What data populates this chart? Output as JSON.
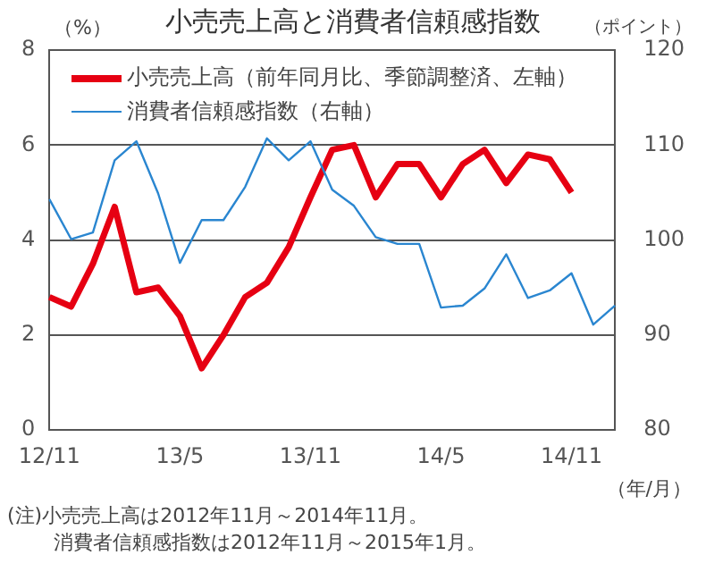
{
  "chart_data": {
    "type": "line",
    "title": "小売売上高と消費者信頼感指数",
    "ylabel": "（%）",
    "y2label": "（ポイント）",
    "xlabel": "（年/月）",
    "categories": [
      "12/11",
      null,
      null,
      null,
      null,
      null,
      "13/5",
      null,
      null,
      null,
      null,
      null,
      "13/11",
      null,
      null,
      null,
      null,
      null,
      "14/5",
      null,
      null,
      null,
      null,
      null,
      "14/11",
      null,
      null
    ],
    "series": [
      {
        "name": "小売売上高（前年同月比、季節調整済、左軸）",
        "color": "#e60012",
        "values": [
          2.8,
          2.6,
          3.5,
          4.7,
          2.9,
          3.0,
          2.4,
          1.3,
          2.0,
          2.8,
          3.1,
          3.85,
          4.9,
          5.9,
          6.0,
          4.9,
          5.6,
          5.6,
          4.9,
          5.6,
          5.9,
          5.2,
          5.8,
          5.7,
          5.0,
          null,
          null
        ]
      },
      {
        "name": "消費者信頼感指数（右軸）",
        "color": "#2a86d0",
        "axis": "y2",
        "values": [
          104.3,
          100.1,
          100.8,
          108.4,
          110.4,
          104.9,
          97.6,
          102.1,
          102.1,
          105.6,
          110.7,
          108.4,
          110.4,
          105.3,
          103.6,
          100.3,
          99.6,
          99.6,
          92.9,
          93.1,
          94.9,
          98.5,
          93.9,
          94.7,
          96.5,
          91.1,
          93.1
        ]
      }
    ],
    "ylim": [
      0,
      8
    ],
    "yticks": [
      0,
      2,
      4,
      6,
      8
    ],
    "y2lim": [
      80,
      120
    ],
    "y2ticks": [
      80,
      90,
      100,
      110,
      120
    ],
    "grid": "y",
    "legend": "top left",
    "marker": "none",
    "annotations": [
      "(注)小売売上高は2012年11月～2014年11月。",
      "消費者信頼感指数は2012年11月～2015年1月。"
    ]
  }
}
